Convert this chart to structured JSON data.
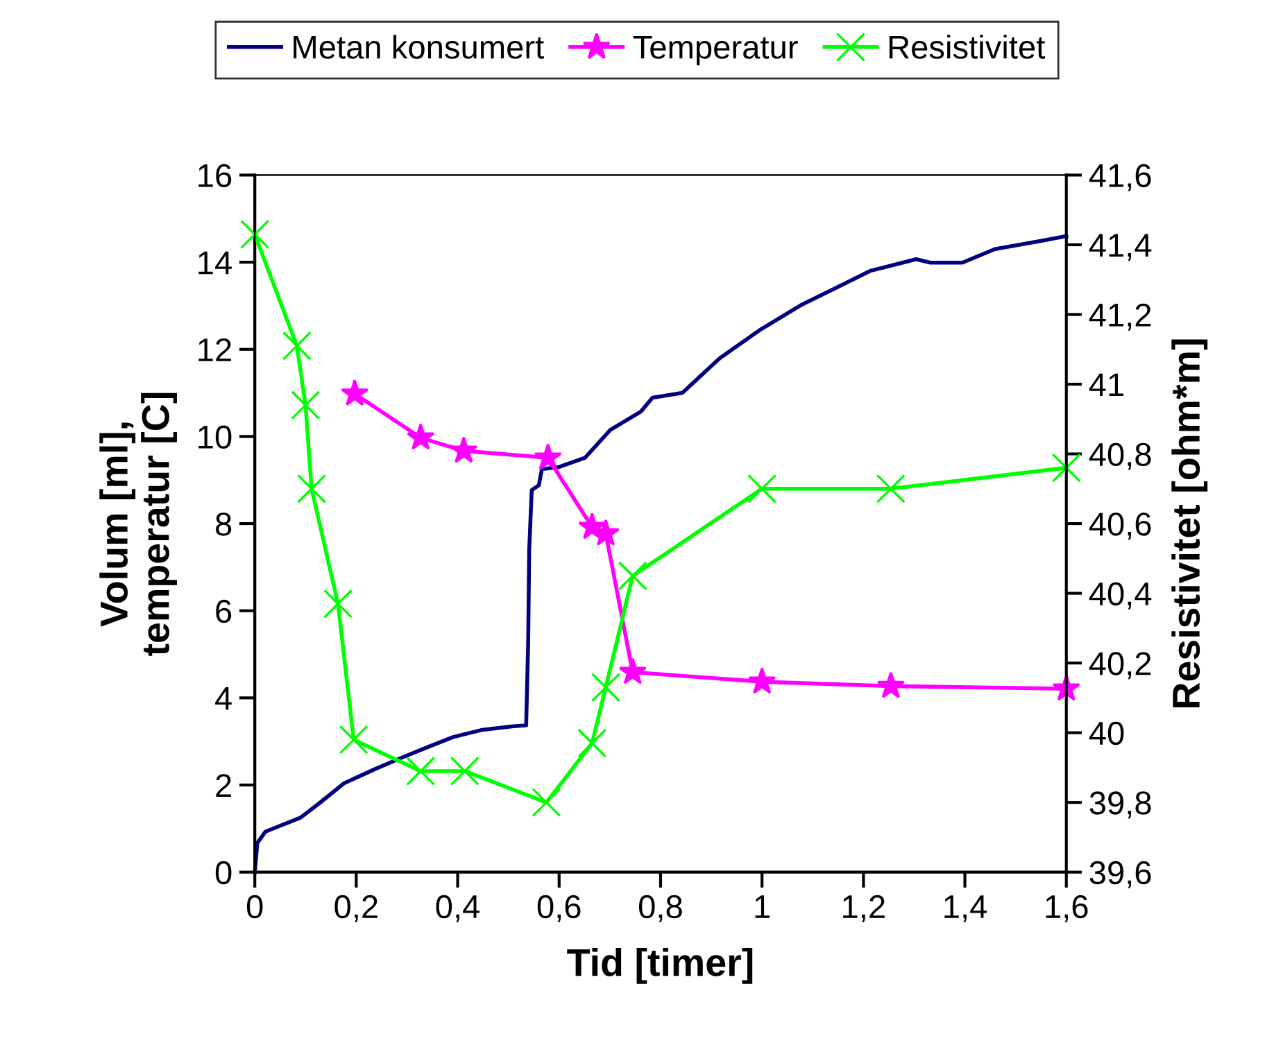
{
  "chart_data": {
    "type": "line",
    "xlabel": "Tid [timer]",
    "ylabel": "Volum [ml],\ntemperatur [C]",
    "y2label": "Resistivitet [ohm*m]",
    "xlim": [
      0,
      1.6
    ],
    "ylim": [
      0,
      16
    ],
    "y2lim": [
      39.6,
      41.6
    ],
    "xticks": [
      0,
      {
        "value": 0.2,
        "label": "0,2"
      },
      {
        "value": 0.4,
        "label": "0,4"
      },
      {
        "value": 0.6,
        "label": "0,6"
      },
      {
        "value": 0.8,
        "label": "0,8"
      },
      1,
      {
        "value": 1.2,
        "label": "1,2"
      },
      {
        "value": 1.4,
        "label": "1,4"
      },
      {
        "value": 1.6,
        "label": "1,6"
      }
    ],
    "yticks": [
      0,
      2,
      4,
      6,
      8,
      10,
      12,
      14,
      16
    ],
    "y2ticks": [
      {
        "value": 39.6,
        "label": "39,6"
      },
      {
        "value": 39.8,
        "label": "39,8"
      },
      40,
      {
        "value": 40.2,
        "label": "40,2"
      },
      {
        "value": 40.4,
        "label": "40,4"
      },
      {
        "value": 40.6,
        "label": "40,6"
      },
      {
        "value": 40.8,
        "label": "40,8"
      },
      41,
      {
        "value": 41.2,
        "label": "41,2"
      },
      {
        "value": 41.4,
        "label": "41,4"
      },
      {
        "value": 41.6,
        "label": "41,6"
      }
    ],
    "grid": false,
    "legend": "top",
    "series": [
      {
        "name": "Metan konsumert",
        "color": "#000080",
        "marker": "none",
        "x": [
          0,
          0.005,
          0.021,
          0.09,
          0.126,
          0.176,
          0.236,
          0.29,
          0.345,
          0.391,
          0.446,
          0.51,
          0.535,
          0.539,
          0.541,
          0.546,
          0.56,
          0.566,
          0.6,
          0.651,
          0.701,
          0.761,
          0.784,
          0.843,
          0.916,
          0.994,
          1.076,
          1.149,
          1.213,
          1.304,
          1.332,
          1.395,
          1.459,
          1.551,
          1.6
        ],
        "values": [
          0,
          0.67,
          0.93,
          1.25,
          1.57,
          2.04,
          2.36,
          2.63,
          2.89,
          3.1,
          3.26,
          3.35,
          3.37,
          5.28,
          7.39,
          8.77,
          8.88,
          9.25,
          9.3,
          9.51,
          10.15,
          10.57,
          10.89,
          11.0,
          11.79,
          12.43,
          13.01,
          13.43,
          13.8,
          14.07,
          13.99,
          13.99,
          14.3,
          14.49,
          14.6
        ]
      },
      {
        "name": "Temperatur",
        "color": "#ff00ff",
        "marker": "star",
        "x": [
          0.197,
          0.327,
          0.412,
          0.578,
          0.665,
          0.692,
          0.745,
          1.0,
          1.254,
          1.6
        ],
        "values": [
          10.98,
          9.97,
          9.67,
          9.51,
          7.92,
          7.77,
          4.59,
          4.37,
          4.27,
          4.21
        ]
      },
      {
        "name": "Resistivitet",
        "color": "#00ff00",
        "marker": "cross",
        "axis": "y2",
        "x": [
          0,
          0.083,
          0.1,
          0.112,
          0.164,
          0.195,
          0.327,
          0.414,
          0.575,
          0.665,
          0.692,
          0.745,
          1.0,
          1.254,
          1.6
        ],
        "values": [
          41.43,
          41.11,
          40.94,
          40.7,
          40.37,
          39.98,
          39.89,
          39.89,
          39.8,
          39.97,
          40.13,
          40.45,
          40.7,
          40.7,
          40.76
        ]
      }
    ]
  }
}
